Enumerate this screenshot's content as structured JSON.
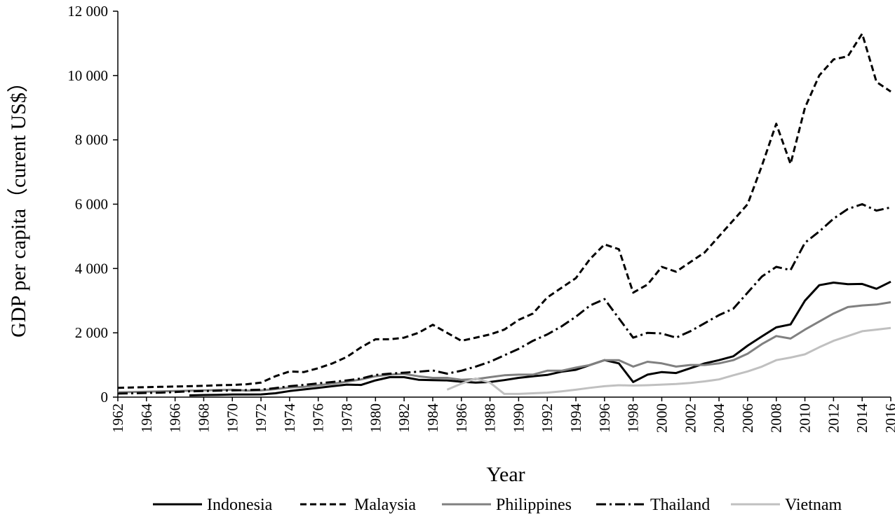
{
  "chart_data": {
    "type": "line",
    "title": "",
    "xlabel": "Year",
    "ylabel": "GDP per capita（curent US$）",
    "xlim": [
      1962,
      2016
    ],
    "ylim": [
      0,
      12000
    ],
    "x_ticks": [
      1962,
      1964,
      1966,
      1968,
      1970,
      1972,
      1974,
      1976,
      1978,
      1980,
      1982,
      1984,
      1986,
      1988,
      1990,
      1992,
      1994,
      1996,
      1998,
      2000,
      2002,
      2004,
      2006,
      2008,
      2010,
      2012,
      2014,
      2016
    ],
    "y_ticks": [
      0,
      2000,
      4000,
      6000,
      8000,
      10000,
      12000
    ],
    "y_tick_labels": [
      "0",
      "2 000",
      "4 000",
      "6 000",
      "8 000",
      "10 000",
      "12 000"
    ],
    "grid": false,
    "legend_position": "bottom",
    "series": [
      {
        "name": "Indonesia",
        "color": "#000000",
        "dash": "solid",
        "x": [
          1967,
          1968,
          1969,
          1970,
          1971,
          1972,
          1973,
          1974,
          1975,
          1976,
          1977,
          1978,
          1979,
          1980,
          1981,
          1982,
          1983,
          1984,
          1985,
          1986,
          1987,
          1988,
          1989,
          1990,
          1991,
          1992,
          1993,
          1994,
          1995,
          1996,
          1997,
          1998,
          1999,
          2000,
          2001,
          2002,
          2003,
          2004,
          2005,
          2006,
          2007,
          2008,
          2009,
          2010,
          2011,
          2012,
          2013,
          2014,
          2015,
          2016
        ],
        "y": [
          55,
          65,
          72,
          80,
          80,
          85,
          120,
          190,
          240,
          290,
          340,
          390,
          380,
          520,
          620,
          620,
          540,
          530,
          520,
          480,
          450,
          470,
          530,
          600,
          650,
          690,
          790,
          850,
          1000,
          1150,
          1050,
          470,
          700,
          780,
          750,
          900,
          1050,
          1150,
          1270,
          1600,
          1890,
          2170,
          2260,
          3000,
          3480,
          3560,
          3510,
          3520,
          3370,
          3590
        ]
      },
      {
        "name": "Malaysia",
        "color": "#000000",
        "dash": "dashed",
        "x": [
          1962,
          1963,
          1964,
          1965,
          1966,
          1967,
          1968,
          1969,
          1970,
          1971,
          1972,
          1973,
          1974,
          1975,
          1976,
          1977,
          1978,
          1979,
          1980,
          1981,
          1982,
          1983,
          1984,
          1985,
          1986,
          1987,
          1988,
          1989,
          1990,
          1991,
          1992,
          1993,
          1994,
          1995,
          1996,
          1997,
          1998,
          1999,
          2000,
          2001,
          2002,
          2003,
          2004,
          2005,
          2006,
          2007,
          2008,
          2009,
          2010,
          2011,
          2012,
          2013,
          2014,
          2015,
          2016
        ],
        "y": [
          290,
          300,
          310,
          320,
          330,
          340,
          350,
          370,
          380,
          400,
          450,
          650,
          800,
          780,
          900,
          1050,
          1250,
          1550,
          1800,
          1800,
          1850,
          2000,
          2250,
          2000,
          1750,
          1850,
          1950,
          2100,
          2400,
          2600,
          3100,
          3400,
          3700,
          4300,
          4750,
          4600,
          3250,
          3500,
          4050,
          3900,
          4200,
          4500,
          5000,
          5500,
          6000,
          7200,
          8500,
          7250,
          9000,
          10000,
          10500,
          10600,
          11300,
          9800,
          9500
        ]
      },
      {
        "name": "Philippines",
        "color": "#808080",
        "dash": "solid",
        "x": [
          1962,
          1963,
          1964,
          1965,
          1966,
          1967,
          1968,
          1969,
          1970,
          1971,
          1972,
          1973,
          1974,
          1975,
          1976,
          1977,
          1978,
          1979,
          1980,
          1981,
          1982,
          1983,
          1984,
          1985,
          1986,
          1987,
          1988,
          1989,
          1990,
          1991,
          1992,
          1993,
          1994,
          1995,
          1996,
          1997,
          1998,
          1999,
          2000,
          2001,
          2002,
          2003,
          2004,
          2005,
          2006,
          2007,
          2008,
          2009,
          2010,
          2011,
          2012,
          2013,
          2014,
          2015,
          2016
        ],
        "y": [
          150,
          160,
          170,
          180,
          190,
          200,
          210,
          220,
          230,
          200,
          210,
          250,
          300,
          320,
          370,
          420,
          480,
          550,
          650,
          700,
          720,
          650,
          600,
          600,
          540,
          560,
          620,
          680,
          700,
          700,
          820,
          820,
          920,
          1000,
          1150,
          1150,
          950,
          1100,
          1050,
          950,
          1000,
          1000,
          1050,
          1150,
          1350,
          1650,
          1900,
          1820,
          2100,
          2350,
          2600,
          2800,
          2850,
          2880,
          2950
        ]
      },
      {
        "name": "Thailand",
        "color": "#000000",
        "dash": "dashdot",
        "x": [
          1962,
          1963,
          1964,
          1965,
          1966,
          1967,
          1968,
          1969,
          1970,
          1971,
          1972,
          1973,
          1974,
          1975,
          1976,
          1977,
          1978,
          1979,
          1980,
          1981,
          1982,
          1983,
          1984,
          1985,
          1986,
          1987,
          1988,
          1989,
          1990,
          1991,
          1992,
          1993,
          1994,
          1995,
          1996,
          1997,
          1998,
          1999,
          2000,
          2001,
          2002,
          2003,
          2004,
          2005,
          2006,
          2007,
          2008,
          2009,
          2010,
          2011,
          2012,
          2013,
          2014,
          2015,
          2016
        ],
        "y": [
          110,
          120,
          130,
          140,
          160,
          180,
          190,
          200,
          210,
          220,
          230,
          280,
          340,
          380,
          430,
          470,
          520,
          580,
          690,
          730,
          760,
          790,
          830,
          730,
          820,
          950,
          1100,
          1300,
          1500,
          1750,
          1950,
          2200,
          2500,
          2850,
          3050,
          2450,
          1850,
          2000,
          1980,
          1850,
          2050,
          2300,
          2550,
          2750,
          3250,
          3750,
          4050,
          3950,
          4800,
          5150,
          5550,
          5850,
          6000,
          5800,
          5900
        ]
      },
      {
        "name": "Vietnam",
        "color": "#c0c0c0",
        "dash": "solid",
        "x": [
          1985,
          1986,
          1987,
          1988,
          1989,
          1990,
          1991,
          1992,
          1993,
          1994,
          1995,
          1996,
          1997,
          1998,
          1999,
          2000,
          2001,
          2002,
          2003,
          2004,
          2005,
          2006,
          2007,
          2008,
          2009,
          2010,
          2011,
          2012,
          2013,
          2014,
          2015,
          2016
        ],
        "y": [
          230,
          420,
          580,
          450,
          100,
          100,
          120,
          140,
          180,
          230,
          290,
          340,
          370,
          360,
          370,
          390,
          410,
          440,
          490,
          550,
          680,
          800,
          950,
          1150,
          1230,
          1330,
          1550,
          1750,
          1900,
          2050,
          2100,
          2150
        ]
      }
    ]
  }
}
